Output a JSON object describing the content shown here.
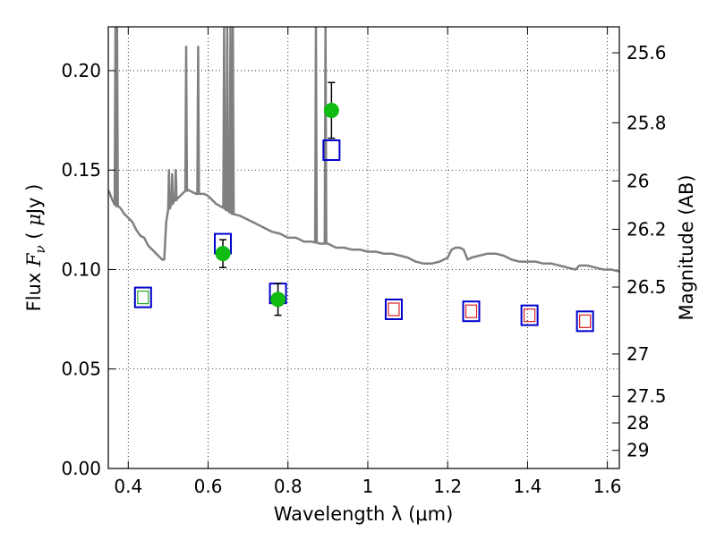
{
  "chart_data": {
    "type": "scatter",
    "title": "",
    "xlabel": "Wavelength  λ (μm)",
    "ylabel": "Flux  F_ν  ( μJy )",
    "ylabel_parts": {
      "pre": "Flux  ",
      "sym": "F",
      "sub": "ν",
      "mid": "  ( ",
      "mu": "μ",
      "post": "Jy )"
    },
    "y2label": "Magnitude (AB)",
    "xlim": [
      0.35,
      1.63
    ],
    "ylim": [
      0.0,
      0.222
    ],
    "grid": true,
    "x_ticks": [
      0.4,
      0.6,
      0.8,
      1.0,
      1.2,
      1.4,
      1.6
    ],
    "x_tick_labels": [
      "0.4",
      "0.6",
      "0.8",
      "1",
      "1.2",
      "1.4",
      "1.6"
    ],
    "y_ticks": [
      0.0,
      0.05,
      0.1,
      0.15,
      0.2
    ],
    "y_tick_labels": [
      "0.00",
      "0.05",
      "0.10",
      "0.15",
      "0.20"
    ],
    "y2_ticks": [
      25.6,
      25.8,
      26,
      26.2,
      26.5,
      27,
      27.5,
      28,
      29
    ],
    "y2_tick_labels": [
      "25.6",
      "25.8",
      "26",
      "26.2",
      "26.5",
      "27",
      "27.5",
      "28",
      "29"
    ],
    "colors": {
      "spectrum": "#808080",
      "model_box": "#0000cc",
      "green_box": "#22aa22",
      "red_box": "#dd2222",
      "observed": "#11bb11",
      "errorbar": "#000000"
    },
    "series": [
      {
        "key": "spectrum",
        "kind": "line",
        "points": [
          [
            0.35,
            0.14
          ],
          [
            0.36,
            0.135
          ],
          [
            0.37,
            0.132
          ],
          [
            0.38,
            0.131
          ],
          [
            0.39,
            0.128
          ],
          [
            0.4,
            0.126
          ],
          [
            0.41,
            0.124
          ],
          [
            0.42,
            0.12
          ],
          [
            0.43,
            0.117
          ],
          [
            0.44,
            0.116
          ],
          [
            0.45,
            0.112
          ],
          [
            0.46,
            0.11
          ],
          [
            0.47,
            0.108
          ],
          [
            0.48,
            0.106
          ],
          [
            0.485,
            0.105
          ],
          [
            0.49,
            0.105
          ],
          [
            0.495,
            0.124
          ],
          [
            0.5,
            0.13
          ],
          [
            0.51,
            0.133
          ],
          [
            0.52,
            0.135
          ],
          [
            0.53,
            0.137
          ],
          [
            0.54,
            0.139
          ],
          [
            0.55,
            0.14
          ],
          [
            0.56,
            0.139
          ],
          [
            0.57,
            0.138
          ],
          [
            0.58,
            0.138
          ],
          [
            0.59,
            0.138
          ],
          [
            0.6,
            0.137
          ],
          [
            0.62,
            0.133
          ],
          [
            0.64,
            0.131
          ],
          [
            0.66,
            0.128
          ],
          [
            0.68,
            0.127
          ],
          [
            0.7,
            0.125
          ],
          [
            0.72,
            0.123
          ],
          [
            0.74,
            0.121
          ],
          [
            0.76,
            0.119
          ],
          [
            0.78,
            0.118
          ],
          [
            0.8,
            0.116
          ],
          [
            0.82,
            0.116
          ],
          [
            0.84,
            0.114
          ],
          [
            0.86,
            0.114
          ],
          [
            0.88,
            0.113
          ],
          [
            0.9,
            0.113
          ],
          [
            0.92,
            0.111
          ],
          [
            0.94,
            0.111
          ],
          [
            0.96,
            0.11
          ],
          [
            0.98,
            0.11
          ],
          [
            1.0,
            0.109
          ],
          [
            1.02,
            0.109
          ],
          [
            1.04,
            0.108
          ],
          [
            1.06,
            0.108
          ],
          [
            1.08,
            0.107
          ],
          [
            1.1,
            0.106
          ],
          [
            1.12,
            0.104
          ],
          [
            1.14,
            0.103
          ],
          [
            1.16,
            0.103
          ],
          [
            1.18,
            0.104
          ],
          [
            1.2,
            0.106
          ],
          [
            1.21,
            0.11
          ],
          [
            1.22,
            0.111
          ],
          [
            1.23,
            0.111
          ],
          [
            1.24,
            0.11
          ],
          [
            1.25,
            0.105
          ],
          [
            1.26,
            0.106
          ],
          [
            1.28,
            0.107
          ],
          [
            1.3,
            0.108
          ],
          [
            1.32,
            0.108
          ],
          [
            1.34,
            0.107
          ],
          [
            1.36,
            0.105
          ],
          [
            1.38,
            0.104
          ],
          [
            1.4,
            0.104
          ],
          [
            1.42,
            0.104
          ],
          [
            1.44,
            0.103
          ],
          [
            1.46,
            0.103
          ],
          [
            1.48,
            0.102
          ],
          [
            1.5,
            0.101
          ],
          [
            1.52,
            0.1
          ],
          [
            1.53,
            0.102
          ],
          [
            1.55,
            0.102
          ],
          [
            1.57,
            0.101
          ],
          [
            1.59,
            0.1
          ],
          [
            1.61,
            0.1
          ],
          [
            1.63,
            0.099
          ]
        ],
        "spikes": [
          [
            0.368,
            0.222
          ],
          [
            0.372,
            0.222
          ],
          [
            0.502,
            0.15
          ],
          [
            0.51,
            0.148
          ],
          [
            0.519,
            0.15
          ],
          [
            0.545,
            0.212
          ],
          [
            0.575,
            0.212
          ],
          [
            0.64,
            0.222
          ],
          [
            0.648,
            0.222
          ],
          [
            0.656,
            0.222
          ],
          [
            0.662,
            0.222
          ],
          [
            0.87,
            0.222
          ],
          [
            0.894,
            0.222
          ]
        ]
      },
      {
        "key": "model_photometry",
        "kind": "open_squares",
        "points": [
          [
            0.437,
            0.086,
            "green"
          ],
          [
            0.637,
            0.113,
            "blue"
          ],
          [
            0.775,
            0.088,
            "blue"
          ],
          [
            0.909,
            0.16,
            "blue"
          ],
          [
            1.065,
            0.08,
            "red"
          ],
          [
            1.259,
            0.079,
            "red"
          ],
          [
            1.405,
            0.077,
            "red"
          ],
          [
            1.544,
            0.074,
            "red"
          ]
        ]
      },
      {
        "key": "observed",
        "kind": "points_with_errors",
        "points": [
          [
            0.637,
            0.108,
            0.007
          ],
          [
            0.775,
            0.085,
            0.008
          ],
          [
            0.909,
            0.18,
            0.014
          ]
        ]
      }
    ]
  }
}
